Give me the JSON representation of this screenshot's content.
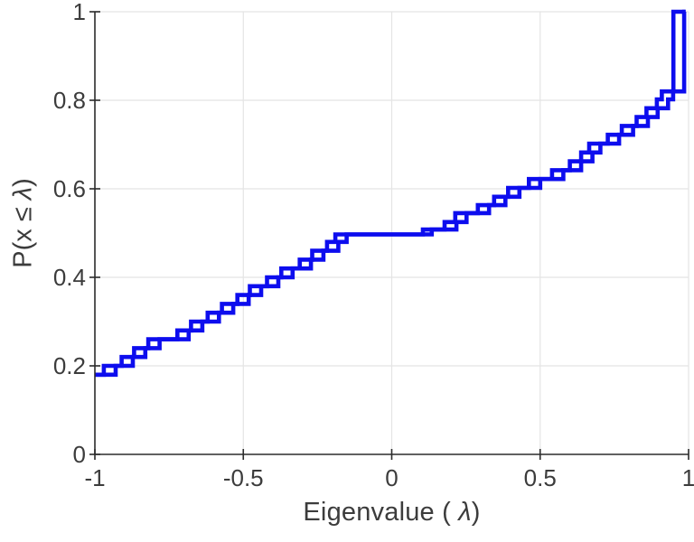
{
  "chart_data": {
    "type": "step",
    "title": "",
    "xlabel": {
      "pre": "Eigenvalue ( ",
      "lambda": "λ",
      "post": ")"
    },
    "ylabel": {
      "pre": "P(x ≤ ",
      "lambda": "λ",
      "post": ")"
    },
    "xlim": [
      -1,
      1
    ],
    "ylim": [
      0,
      1
    ],
    "x_ticks": [
      -1,
      -0.5,
      0,
      0.5,
      1
    ],
    "x_tick_labels": [
      "-1",
      "-0.5",
      "0",
      "0.5",
      "1"
    ],
    "y_ticks": [
      0,
      0.2,
      0.4,
      0.6,
      0.8,
      1
    ],
    "y_tick_labels": [
      "0",
      "0.2",
      "0.4",
      "0.6",
      "0.8",
      "1"
    ],
    "grid": true,
    "legend": null,
    "line_color": "#0d0dee",
    "axis_color": "#2b2b2b",
    "grid_color": "#e4e4e4",
    "tick_label_color": "#3c3c3c",
    "start": {
      "x": -1,
      "y": 0.18
    },
    "end_x": 0.99,
    "series": [
      {
        "name": "ecdf-steps-early",
        "steps": [
          [
            -0.97,
            0.2
          ],
          [
            -0.91,
            0.22
          ],
          [
            -0.868,
            0.24
          ],
          [
            -0.82,
            0.26
          ],
          [
            -0.722,
            0.28
          ],
          [
            -0.676,
            0.3
          ],
          [
            -0.62,
            0.32
          ],
          [
            -0.572,
            0.34
          ],
          [
            -0.52,
            0.36
          ],
          [
            -0.478,
            0.38
          ],
          [
            -0.42,
            0.4
          ],
          [
            -0.372,
            0.42
          ],
          [
            -0.31,
            0.44
          ],
          [
            -0.268,
            0.46
          ],
          [
            -0.218,
            0.48
          ],
          [
            -0.19,
            0.497
          ],
          [
            0.105,
            0.508
          ],
          [
            0.178,
            0.525
          ],
          [
            0.214,
            0.545
          ],
          [
            0.29,
            0.563
          ],
          [
            0.345,
            0.582
          ],
          [
            0.392,
            0.602
          ],
          [
            0.462,
            0.622
          ],
          [
            0.54,
            0.642
          ],
          [
            0.6,
            0.662
          ],
          [
            0.638,
            0.682
          ],
          [
            0.665,
            0.702
          ],
          [
            0.728,
            0.722
          ],
          [
            0.775,
            0.742
          ],
          [
            0.825,
            0.762
          ],
          [
            0.858,
            0.782
          ],
          [
            0.893,
            0.802
          ],
          [
            0.91,
            0.82
          ],
          [
            0.949,
            1.0
          ]
        ]
      },
      {
        "name": "ecdf-steps-late",
        "steps": [
          [
            -0.93,
            0.2
          ],
          [
            -0.872,
            0.22
          ],
          [
            -0.83,
            0.24
          ],
          [
            -0.782,
            0.26
          ],
          [
            -0.684,
            0.28
          ],
          [
            -0.638,
            0.3
          ],
          [
            -0.582,
            0.32
          ],
          [
            -0.534,
            0.34
          ],
          [
            -0.482,
            0.36
          ],
          [
            -0.44,
            0.38
          ],
          [
            -0.382,
            0.4
          ],
          [
            -0.334,
            0.42
          ],
          [
            -0.272,
            0.44
          ],
          [
            -0.23,
            0.46
          ],
          [
            -0.18,
            0.48
          ],
          [
            -0.152,
            0.497
          ],
          [
            0.135,
            0.508
          ],
          [
            0.218,
            0.525
          ],
          [
            0.252,
            0.545
          ],
          [
            0.328,
            0.563
          ],
          [
            0.383,
            0.582
          ],
          [
            0.43,
            0.602
          ],
          [
            0.5,
            0.622
          ],
          [
            0.578,
            0.642
          ],
          [
            0.638,
            0.662
          ],
          [
            0.676,
            0.682
          ],
          [
            0.703,
            0.702
          ],
          [
            0.766,
            0.722
          ],
          [
            0.813,
            0.742
          ],
          [
            0.863,
            0.762
          ],
          [
            0.896,
            0.782
          ],
          [
            0.931,
            0.802
          ],
          [
            0.948,
            0.82
          ],
          [
            0.985,
            1.0
          ]
        ]
      }
    ]
  }
}
